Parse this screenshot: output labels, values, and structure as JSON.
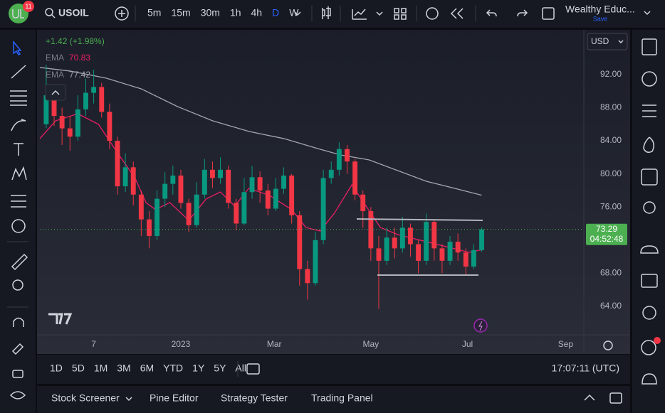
{
  "toolbar": {
    "badge": "11",
    "symbol": "USOIL",
    "intervals": [
      "5m",
      "15m",
      "30m",
      "1h",
      "4h",
      "D",
      "W"
    ],
    "account": "Wealthy Educ...",
    "save": "Save"
  },
  "chart_data": {
    "type": "candlestick",
    "change": "+1.42 (+1.98%)",
    "days": [
      -85,
      -80,
      -75,
      -70,
      -65,
      -60,
      -55,
      -50,
      -45,
      -40,
      -35,
      -30,
      -25,
      -20,
      -15,
      -10,
      -5,
      0,
      5,
      10,
      15,
      20,
      25,
      30,
      35,
      40,
      45,
      50,
      55,
      60,
      65,
      70,
      75,
      80,
      85,
      90,
      95,
      100,
      105,
      110,
      115,
      120,
      125,
      130,
      135,
      140,
      145,
      150,
      155,
      160,
      165,
      170,
      175,
      180,
      185,
      190
    ],
    "open": [
      86.0,
      89.5,
      87.0,
      85.5,
      84.5,
      87.8,
      89.8,
      90.5,
      87.5,
      84.0,
      78.5,
      80.8,
      77.5,
      74.5,
      72.5,
      77.0,
      78.8,
      79.8,
      76.5,
      73.8,
      77.5,
      80.5,
      79.5,
      80.5,
      76.5,
      74.0,
      77.8,
      79.6,
      78.0,
      75.8,
      78.2,
      79.8,
      75.0,
      68.5,
      66.8,
      72.0,
      79.5,
      80.5,
      83.0,
      81.5,
      77.5,
      75.5,
      71.0,
      69.5,
      72.3,
      71.0,
      73.5,
      71.5,
      69.5,
      74.2,
      71.0,
      69.5,
      71.8,
      70.5,
      68.8,
      70.8
    ],
    "high": [
      93.2,
      90,
      88,
      87,
      89.5,
      91.5,
      92.6,
      91,
      88.5,
      84.5,
      82.5,
      81.5,
      78,
      75.5,
      78,
      80.2,
      81,
      80.5,
      77,
      79,
      81.8,
      81.5,
      82,
      81,
      77,
      79.5,
      81,
      80.3,
      78.8,
      79.5,
      80.8,
      80,
      75.5,
      69.5,
      73,
      80.5,
      81.5,
      83.8,
      83.5,
      81.8,
      78,
      76,
      72.5,
      73.5,
      73.5,
      74.8,
      74,
      72,
      75.2,
      74.5,
      71.5,
      72.5,
      72.8,
      71,
      71.5,
      73.5
    ],
    "low": [
      85.5,
      85.8,
      83.5,
      82.8,
      84,
      87,
      88.5,
      86.8,
      83,
      77.5,
      77.8,
      76.2,
      72.5,
      71,
      72,
      76,
      77.5,
      75.8,
      73,
      73.5,
      77,
      78.3,
      78.8,
      75.8,
      73.2,
      73.8,
      77,
      76.5,
      75,
      75.5,
      77.6,
      74,
      66.5,
      64.8,
      66.5,
      71.5,
      78.8,
      79.8,
      80,
      76.8,
      73.5,
      69.5,
      63.7,
      69,
      69.8,
      70.5,
      70,
      68,
      69,
      69.5,
      68,
      69,
      69.5,
      67.8,
      68.5,
      70.6
    ],
    "close": [
      89.5,
      87.0,
      85.5,
      84.5,
      87.8,
      89.8,
      90.5,
      87.5,
      84.0,
      78.5,
      80.8,
      77.5,
      74.5,
      72.5,
      77.0,
      78.8,
      79.8,
      76.5,
      73.8,
      77.5,
      80.5,
      79.5,
      80.5,
      76.5,
      74.0,
      77.8,
      79.6,
      78.0,
      75.8,
      78.2,
      79.8,
      75.0,
      68.5,
      66.8,
      72.0,
      79.5,
      80.5,
      83.0,
      81.5,
      77.5,
      75.5,
      71.0,
      69.5,
      72.3,
      71.0,
      73.5,
      71.5,
      69.5,
      74.2,
      71.0,
      69.5,
      71.8,
      70.5,
      68.8,
      70.8,
      73.29
    ],
    "up_color": "#089981",
    "down_color": "#f23645",
    "series": [
      {
        "name": "EMA",
        "color": "#e91e63",
        "x": [
          -89,
          -79,
          -65,
          -52,
          -40,
          -29,
          -22,
          -16,
          -7,
          5,
          16,
          25,
          34,
          43,
          56,
          70,
          79,
          88,
          97,
          108,
          117,
          126,
          137,
          155,
          173,
          182,
          190
        ],
        "values": [
          84.27,
          86.42,
          87.27,
          85.99,
          82.55,
          79.54,
          76.54,
          75.68,
          76.54,
          74.39,
          76.97,
          77.82,
          76.11,
          78.25,
          77.4,
          75.68,
          73.53,
          73.1,
          75.25,
          78.68,
          76.11,
          73.53,
          72.67,
          71.81,
          70.95,
          70.52,
          70.83
        ]
      },
      {
        "name": "EMA",
        "color": "#a3a6af",
        "x": [
          -89,
          -70,
          -47,
          -25,
          -2,
          20,
          43,
          65,
          88,
          101,
          119,
          137,
          155,
          173,
          190
        ],
        "values": [
          92.86,
          92.43,
          91.57,
          90.28,
          88.13,
          86.42,
          85.13,
          84.27,
          82.98,
          82.29,
          81.69,
          80.4,
          79.11,
          78.25,
          77.42
        ]
      }
    ],
    "xlim": [
      -89,
      254.5
    ],
    "xticks": [
      {
        "value": -55,
        "label": "7"
      },
      {
        "value": 0,
        "label": "2023"
      },
      {
        "value": 59,
        "label": "Mar"
      },
      {
        "value": 120,
        "label": "May"
      },
      {
        "value": 181,
        "label": "Jul"
      },
      {
        "value": 243,
        "label": "Sep"
      }
    ],
    "ylim": [
      60.64,
      97.15
    ],
    "yticks": [
      {
        "value": 64,
        "label": "64.00"
      },
      {
        "value": 68,
        "label": "68.00"
      },
      {
        "value": 72,
        "label": "72.00"
      },
      {
        "value": 76,
        "label": "76.00"
      },
      {
        "value": 80,
        "label": "80.00"
      },
      {
        "value": 84,
        "label": "84.00"
      },
      {
        "value": 88,
        "label": "88.00"
      },
      {
        "value": 92,
        "label": "92.00"
      }
    ],
    "currency": "USD",
    "countdown": "04:52:48"
  },
  "ranges": [
    "1D",
    "5D",
    "1M",
    "3M",
    "6M",
    "YTD",
    "1Y",
    "5Y",
    "All"
  ],
  "clock": "17:07:11 (UTC)",
  "bottom_tabs": [
    "Stock Screener",
    "Pine Editor",
    "Strategy Tester",
    "Trading Panel"
  ]
}
